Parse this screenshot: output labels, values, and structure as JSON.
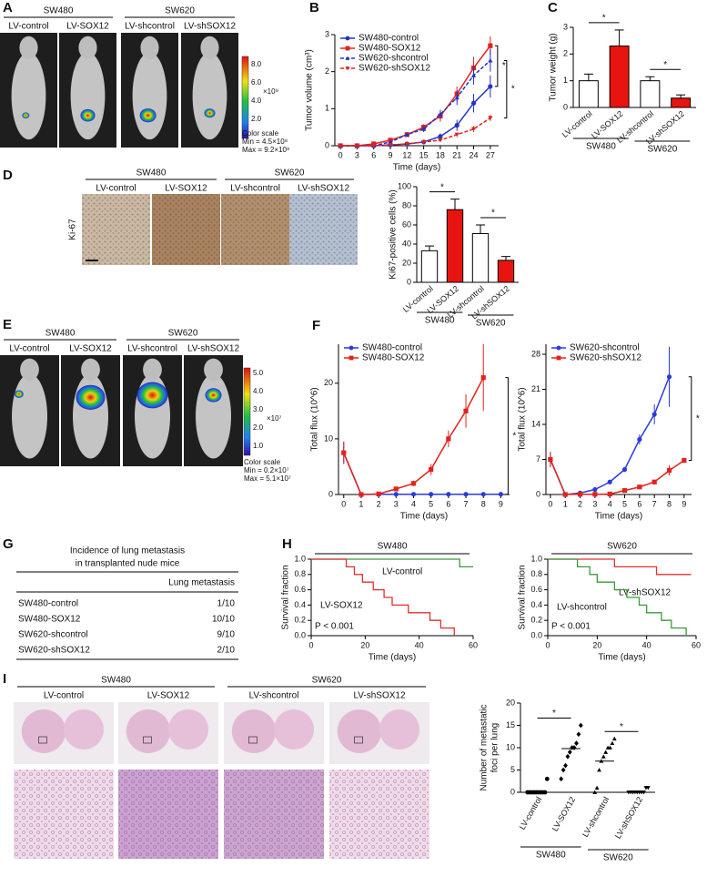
{
  "panels": {
    "A": {
      "label": "A",
      "groups": [
        {
          "name": "SW480",
          "lanes": [
            "LV-control",
            "LV-SOX12"
          ]
        },
        {
          "name": "SW620",
          "lanes": [
            "LV-shcontrol",
            "LV-shSOX12"
          ]
        }
      ],
      "colorbar": {
        "ticks": [
          "8.0",
          "6.0",
          "4.0",
          "2.0"
        ],
        "exponent": "×10⁹",
        "caption": "Color scale",
        "min": "Min = 4.5×10⁸",
        "max": "Max = 9.2×10⁹"
      }
    },
    "D": {
      "label": "D",
      "stain": "Ki-67",
      "groups": [
        {
          "name": "SW480",
          "lanes": [
            "LV-control",
            "LV-SOX12"
          ]
        },
        {
          "name": "SW620",
          "lanes": [
            "LV-shcontrol",
            "LV-shSOX12"
          ]
        }
      ]
    },
    "E": {
      "label": "E",
      "groups": [
        {
          "name": "SW480",
          "lanes": [
            "LV-control",
            "LV-SOX12"
          ]
        },
        {
          "name": "SW620",
          "lanes": [
            "LV-shcontrol",
            "LV-shSOX12"
          ]
        }
      ],
      "colorbar": {
        "ticks": [
          "5.0",
          "4.0",
          "3.0",
          "2.0",
          "1.0"
        ],
        "exponent": "×10⁷",
        "caption": "Color scale",
        "min": "Min = 0.2×10⁷",
        "max": "Max = 5.1×10⁷"
      }
    },
    "G": {
      "label": "G",
      "title": [
        "Incidence of lung metastasis",
        "in transplanted nude mice"
      ],
      "header": "Lung metastasis",
      "rows": [
        [
          "SW480-control",
          "1/10"
        ],
        [
          "SW480-SOX12",
          "10/10"
        ],
        [
          "SW620-shcontrol",
          "9/10"
        ],
        [
          "SW620-shSOX12",
          "2/10"
        ]
      ]
    },
    "I": {
      "label": "I",
      "groups": [
        {
          "name": "SW480",
          "lanes": [
            "LV-control",
            "LV-SOX12"
          ]
        },
        {
          "name": "SW620",
          "lanes": [
            "LV-shcontrol",
            "LV-shSOX12"
          ]
        }
      ]
    }
  },
  "chart_data": [
    {
      "panel": "B",
      "type": "line",
      "x_label": "Time (days)",
      "y_label": "Tumor volume (cm³)",
      "x": [
        0,
        3,
        6,
        9,
        12,
        15,
        18,
        21,
        24,
        27
      ],
      "xlim": [
        -1,
        28.5
      ],
      "xticks": [
        0,
        3,
        6,
        9,
        12,
        15,
        18,
        21,
        24,
        27
      ],
      "ylim": [
        0,
        3
      ],
      "yticks": [
        0,
        1,
        2,
        3
      ],
      "legend": "upper left",
      "series": [
        {
          "name": "SW480-control",
          "color": "#2233c8",
          "marker": "circle",
          "dash": false,
          "values": [
            0,
            0,
            0,
            0.02,
            0.05,
            0.1,
            0.25,
            0.55,
            1.15,
            1.6
          ],
          "errors": [
            0,
            0,
            0,
            0.01,
            0.02,
            0.04,
            0.08,
            0.15,
            0.25,
            0.3
          ]
        },
        {
          "name": "SW480-SOX12",
          "color": "#e3221c",
          "marker": "square",
          "dash": false,
          "values": [
            0,
            0,
            0.05,
            0.15,
            0.3,
            0.5,
            0.8,
            1.4,
            2.1,
            2.7
          ],
          "errors": [
            0,
            0,
            0.02,
            0.04,
            0.06,
            0.08,
            0.15,
            0.2,
            0.3,
            0.25
          ]
        },
        {
          "name": "SW620-shcontrol",
          "color": "#2233c8",
          "marker": "triangle",
          "dash": true,
          "values": [
            0,
            0,
            0,
            0.1,
            0.3,
            0.45,
            0.85,
            1.3,
            1.9,
            2.3
          ],
          "errors": [
            0,
            0,
            0,
            0.03,
            0.06,
            0.08,
            0.12,
            0.2,
            0.25,
            0.3
          ]
        },
        {
          "name": "SW620-shSOX12",
          "color": "#e3221c",
          "marker": "triangle-down",
          "dash": true,
          "values": [
            0,
            0,
            0,
            0.02,
            0.05,
            0.1,
            0.15,
            0.3,
            0.45,
            0.75
          ],
          "errors": [
            0,
            0,
            0,
            0.01,
            0.02,
            0.03,
            0.04,
            0.06,
            0.08,
            0.08
          ]
        }
      ],
      "significance": [
        {
          "label": "*",
          "between": [
            "SW480-control",
            "SW480-SOX12"
          ]
        },
        {
          "label": "*",
          "between": [
            "SW620-shcontrol",
            "SW620-shSOX12"
          ]
        }
      ]
    },
    {
      "panel": "C",
      "type": "bar",
      "y_label": "Tumor weight (g)",
      "categories": [
        "LV-control",
        "LV-SOX12",
        "LV-shcontrol",
        "LV-shSOX12"
      ],
      "values": [
        1.0,
        2.3,
        1.0,
        0.35
      ],
      "errors": [
        0.25,
        0.6,
        0.15,
        0.12
      ],
      "colors": [
        "#ffffff",
        "#e8140f",
        "#ffffff",
        "#e8140f"
      ],
      "ylim": [
        0,
        3
      ],
      "yticks": [
        0,
        1,
        2,
        3
      ],
      "groups": [
        {
          "name": "SW480",
          "categories": [
            "LV-control",
            "LV-SOX12"
          ]
        },
        {
          "name": "SW620",
          "categories": [
            "LV-shcontrol",
            "LV-shSOX12"
          ]
        }
      ],
      "significance": [
        {
          "label": "*",
          "between": [
            "LV-control",
            "LV-SOX12"
          ]
        },
        {
          "label": "*",
          "between": [
            "LV-shcontrol",
            "LV-shSOX12"
          ]
        }
      ]
    },
    {
      "type": "bar",
      "y_label": "Ki67-positive cells (%)",
      "categories": [
        "LV-control",
        "LV-SOX12",
        "LV-shcontrol",
        "LV-shSOX12"
      ],
      "values": [
        33,
        76,
        51,
        23
      ],
      "errors": [
        5,
        11,
        9,
        4
      ],
      "colors": [
        "#ffffff",
        "#e8140f",
        "#ffffff",
        "#e8140f"
      ],
      "ylim": [
        0,
        100
      ],
      "yticks": [
        0,
        20,
        40,
        60,
        80,
        100
      ],
      "groups": [
        {
          "name": "SW480",
          "categories": [
            "LV-control",
            "LV-SOX12"
          ]
        },
        {
          "name": "SW620",
          "categories": [
            "LV-shcontrol",
            "LV-shSOX12"
          ]
        }
      ],
      "significance": [
        {
          "label": "*",
          "between": [
            "LV-control",
            "LV-SOX12"
          ]
        },
        {
          "label": "*",
          "between": [
            "LV-shcontrol",
            "LV-shSOX12"
          ]
        }
      ]
    },
    {
      "panel": "F",
      "type": "line",
      "x_label": "Time (days)",
      "y_label": "Total flux (10^6)",
      "x": [
        0,
        1,
        2,
        3,
        4,
        5,
        6,
        7,
        8,
        9
      ],
      "xlim": [
        -0.3,
        9.5
      ],
      "xticks": [
        0,
        1,
        2,
        3,
        4,
        5,
        6,
        7,
        8,
        9
      ],
      "ylim": [
        0,
        27
      ],
      "yticks": [
        0,
        10,
        20
      ],
      "legend": "upper left",
      "series": [
        {
          "name": "SW480-control",
          "color": "#2a3ae0",
          "marker": "circle",
          "dash": false,
          "values": [
            7.5,
            0,
            0.05,
            0.05,
            0.05,
            0.05,
            0.05,
            0.05,
            0.05,
            0.05
          ],
          "errors": [
            2,
            0,
            0,
            0,
            0,
            0,
            0,
            0,
            0,
            0
          ]
        },
        {
          "name": "SW480-SOX12",
          "color": "#e3221c",
          "marker": "square",
          "dash": false,
          "values": [
            7.5,
            0,
            0.1,
            1,
            2,
            4.5,
            10,
            15,
            21,
            null
          ],
          "errors": [
            2,
            0,
            0.1,
            0.3,
            0.5,
            1,
            1.5,
            3,
            6,
            null
          ]
        }
      ],
      "significance": [
        {
          "label": "*",
          "between": [
            "SW480-SOX12",
            "SW480-control"
          ]
        }
      ]
    },
    {
      "type": "line",
      "x_label": "Time (days)",
      "y_label": "Total flux (10^6)",
      "x": [
        0,
        1,
        2,
        3,
        4,
        5,
        6,
        7,
        8,
        9
      ],
      "xlim": [
        -0.3,
        9.5
      ],
      "xticks": [
        0,
        1,
        2,
        3,
        4,
        5,
        6,
        7,
        8,
        9
      ],
      "ylim": [
        0,
        30
      ],
      "yticks": [
        0,
        7,
        14,
        21,
        28
      ],
      "legend": "upper left",
      "series": [
        {
          "name": "SW620-shcontrol",
          "color": "#2a3ae0",
          "marker": "circle",
          "dash": false,
          "values": [
            7,
            0,
            0.3,
            1,
            2.5,
            5,
            11,
            16,
            23.5,
            null
          ],
          "errors": [
            1.5,
            0,
            0.1,
            0.2,
            0.3,
            0.5,
            1,
            2,
            6,
            null
          ]
        },
        {
          "name": "SW620-shSOX12",
          "color": "#e3221c",
          "marker": "square",
          "dash": false,
          "values": [
            7,
            0,
            0.05,
            0.05,
            0.1,
            0.8,
            1.5,
            2.5,
            4.8,
            6.8
          ],
          "errors": [
            1.5,
            0,
            0,
            0,
            0,
            0.2,
            0.3,
            0.5,
            1,
            0.3
          ]
        }
      ],
      "significance": [
        {
          "label": "*",
          "between": [
            "SW620-shcontrol",
            "SW620-shSOX12"
          ]
        }
      ]
    },
    {
      "panel": "H",
      "type": "step",
      "title": "SW480",
      "x_label": "Time (days)",
      "y_label": "Survival fraction",
      "xlim": [
        0,
        60
      ],
      "xticks": [
        0,
        20,
        40,
        60
      ],
      "ylim": [
        0,
        1
      ],
      "yticks": [
        {
          "value": 0,
          "label": "0.0"
        },
        0.2,
        0.4,
        0.6,
        0.8,
        {
          "value": 1,
          "label": "1.0"
        }
      ],
      "annotation": "P < 0.001",
      "series": [
        {
          "name": "LV-control",
          "color": "#3a9a3a",
          "x": [
            0,
            55,
            60
          ],
          "values": [
            1,
            0.9,
            0.9
          ]
        },
        {
          "name": "LV-SOX12",
          "color": "#e03030",
          "x": [
            0,
            13,
            16,
            19,
            23,
            27,
            30,
            36,
            44,
            48,
            53
          ],
          "values": [
            1,
            0.9,
            0.8,
            0.7,
            0.6,
            0.5,
            0.4,
            0.3,
            0.2,
            0.1,
            0
          ]
        }
      ]
    },
    {
      "type": "step",
      "title": "SW620",
      "x_label": "Time (days)",
      "y_label": "Survival fraction",
      "xlim": [
        0,
        60
      ],
      "xticks": [
        0,
        20,
        40,
        60
      ],
      "ylim": [
        0,
        1
      ],
      "yticks": [
        {
          "value": 0,
          "label": "0.0"
        },
        0.2,
        0.4,
        0.6,
        0.8,
        {
          "value": 1,
          "label": "1.0"
        }
      ],
      "annotation": "P < 0.001",
      "series": [
        {
          "name": "LV-shSOX12",
          "color": "#e03030",
          "x": [
            0,
            27,
            44,
            58
          ],
          "values": [
            1,
            0.9,
            0.8,
            0.8
          ]
        },
        {
          "name": "LV-shcontrol",
          "color": "#3a9a3a",
          "x": [
            0,
            12,
            17,
            20,
            27,
            32,
            37,
            40,
            46,
            50,
            56
          ],
          "values": [
            1,
            0.9,
            0.8,
            0.7,
            0.6,
            0.5,
            0.4,
            0.3,
            0.2,
            0.1,
            0
          ]
        }
      ]
    },
    {
      "type": "dot",
      "y_label": [
        "Number of metastatic",
        "foci per lung"
      ],
      "categories": [
        "LV-control",
        "LV-SOX12",
        "LV-shcontrol",
        "LV-shSOX12"
      ],
      "points": [
        [
          0,
          0,
          0,
          0,
          0,
          0,
          0,
          0,
          0,
          3
        ],
        [
          3,
          5,
          6,
          8,
          9,
          10,
          10,
          11,
          13,
          15
        ],
        [
          0,
          1,
          5,
          7,
          8,
          9,
          10,
          10,
          11,
          12
        ],
        [
          0,
          0,
          0,
          0,
          0,
          0,
          0,
          0,
          1,
          1
        ]
      ],
      "medians": [
        0,
        9.8,
        7,
        0
      ],
      "markers": [
        "circle",
        "diamond",
        "triangle",
        "triangle-down"
      ],
      "color": "#000000",
      "ylim": [
        0,
        20
      ],
      "yticks": [
        0,
        5,
        10,
        15,
        20
      ],
      "groups": [
        {
          "name": "SW480",
          "categories": [
            "LV-control",
            "LV-SOX12"
          ]
        },
        {
          "name": "SW620",
          "categories": [
            "LV-shcontrol",
            "LV-shSOX12"
          ]
        }
      ],
      "significance": [
        {
          "label": "*",
          "between": [
            "LV-control",
            "LV-SOX12"
          ]
        },
        {
          "label": "*",
          "between": [
            "LV-shcontrol",
            "LV-shSOX12"
          ]
        }
      ]
    }
  ]
}
